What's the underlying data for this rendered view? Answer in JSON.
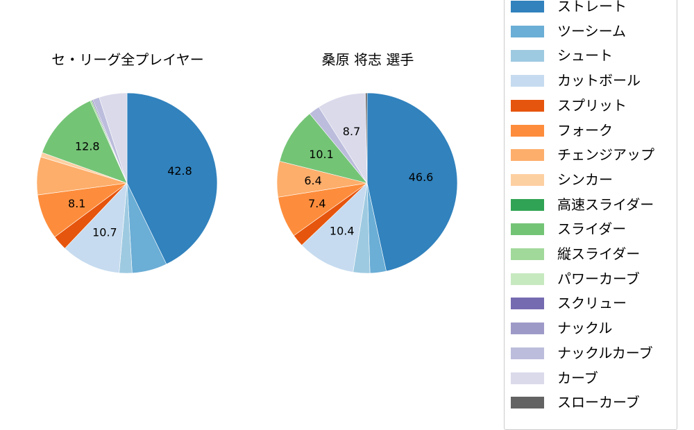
{
  "chart_data": [
    {
      "type": "pie",
      "title": "セ・リーグ全プレイヤー",
      "categories": [
        "ストレート",
        "ツーシーム",
        "シュート",
        "カットボール",
        "スプリット",
        "フォーク",
        "チェンジアップ",
        "シンカー",
        "スライダー",
        "縦スライダー",
        "スクリュー",
        "ナックルカーブ",
        "カーブ"
      ],
      "values": [
        42.8,
        6.3,
        2.3,
        10.7,
        2.7,
        8.1,
        6.8,
        0.8,
        12.8,
        0.3,
        0.2,
        1.2,
        5.0
      ],
      "shown_labels": {
        "ストレート": "42.8",
        "カットボール": "10.7",
        "フォーク": "8.1",
        "スライダー": "12.8"
      },
      "start_angle": 90,
      "direction": "clockwise"
    },
    {
      "type": "pie",
      "title": "桑原 将志  選手",
      "categories": [
        "ストレート",
        "ツーシーム",
        "シュート",
        "カットボール",
        "スプリット",
        "フォーク",
        "チェンジアップ",
        "スライダー",
        "ナックルカーブ",
        "カーブ",
        "スローカーブ"
      ],
      "values": [
        46.6,
        2.9,
        3.0,
        10.4,
        2.2,
        7.4,
        6.4,
        10.1,
        2.0,
        8.7,
        0.3
      ],
      "shown_labels": {
        "ストレート": "46.6",
        "カットボール": "10.4",
        "フォーク": "7.4",
        "チェンジアップ": "6.4",
        "スライダー": "10.1",
        "カーブ": "8.7"
      },
      "start_angle": 90,
      "direction": "clockwise"
    }
  ],
  "titles": {
    "left": "セ・リーグ全プレイヤー",
    "right": "桑原 将志  選手"
  },
  "legend": {
    "items": [
      {
        "label": "ストレート",
        "color": "#3182bd"
      },
      {
        "label": "ツーシーム",
        "color": "#6baed6"
      },
      {
        "label": "シュート",
        "color": "#9ecae1"
      },
      {
        "label": "カットボール",
        "color": "#c6dbef"
      },
      {
        "label": "スプリット",
        "color": "#e6550d"
      },
      {
        "label": "フォーク",
        "color": "#fd8d3c"
      },
      {
        "label": "チェンジアップ",
        "color": "#fdae6b"
      },
      {
        "label": "シンカー",
        "color": "#fdd0a2"
      },
      {
        "label": "高速スライダー",
        "color": "#31a354"
      },
      {
        "label": "スライダー",
        "color": "#74c476"
      },
      {
        "label": "縦スライダー",
        "color": "#a1d99b"
      },
      {
        "label": "パワーカーブ",
        "color": "#c7e9c0"
      },
      {
        "label": "スクリュー",
        "color": "#756bb1"
      },
      {
        "label": "ナックル",
        "color": "#9e9ac8"
      },
      {
        "label": "ナックルカーブ",
        "color": "#bcbddc"
      },
      {
        "label": "カーブ",
        "color": "#dadaeb"
      },
      {
        "label": "スローカーブ",
        "color": "#636363"
      }
    ]
  }
}
